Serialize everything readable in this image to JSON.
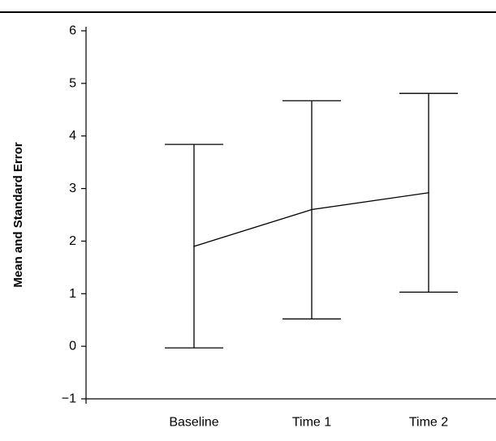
{
  "chart_data": {
    "type": "line",
    "title": "",
    "xlabel": "",
    "ylabel": "Mean and Standard Error",
    "categories": [
      "Baseline",
      "Time 1",
      "Time 2"
    ],
    "series": [
      {
        "values": [
          1.9,
          2.6,
          2.92
        ],
        "error_low": [
          -0.03,
          0.52,
          1.03
        ],
        "error_high": [
          3.84,
          4.67,
          4.81
        ]
      }
    ],
    "yticks": [
      -1,
      0,
      1,
      2,
      3,
      4,
      5,
      6
    ],
    "ytick_labels": [
      "−1",
      "0",
      "1",
      "2",
      "3",
      "4",
      "5",
      "6"
    ],
    "ylim": [
      -1,
      6
    ],
    "grid": false,
    "colors": {
      "line": "#000000",
      "text": "#000000"
    }
  }
}
